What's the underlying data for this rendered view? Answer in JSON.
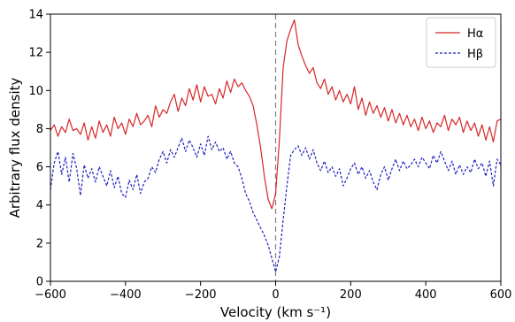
{
  "chart_data": {
    "type": "line",
    "xlabel": "Velocity (km s⁻¹)",
    "ylabel": "Arbitrary flux density",
    "xlim": [
      -600,
      600
    ],
    "ylim": [
      0,
      14
    ],
    "xticks": [
      -600,
      -400,
      -200,
      0,
      200,
      400,
      600
    ],
    "xtick_labels": [
      "−600",
      "−400",
      "−200",
      "0",
      "200",
      "400",
      "600"
    ],
    "yticks": [
      0,
      2,
      4,
      6,
      8,
      10,
      12,
      14
    ],
    "ytick_labels": [
      "0",
      "2",
      "4",
      "6",
      "8",
      "10",
      "12",
      "14"
    ],
    "grid": false,
    "legend_position": "top-right",
    "reference_line": {
      "x": 0,
      "style": "dashed",
      "color": "#808080"
    },
    "series": [
      {
        "name": "Hα",
        "color": "#d62728",
        "style": "solid",
        "x": [
          -600,
          -590,
          -580,
          -570,
          -560,
          -550,
          -540,
          -530,
          -520,
          -510,
          -500,
          -490,
          -480,
          -470,
          -460,
          -450,
          -440,
          -430,
          -420,
          -410,
          -400,
          -390,
          -380,
          -370,
          -360,
          -350,
          -340,
          -330,
          -320,
          -310,
          -300,
          -290,
          -280,
          -270,
          -260,
          -250,
          -240,
          -230,
          -220,
          -210,
          -200,
          -190,
          -180,
          -170,
          -160,
          -150,
          -140,
          -130,
          -120,
          -110,
          -100,
          -90,
          -80,
          -70,
          -60,
          -50,
          -40,
          -30,
          -20,
          -10,
          0,
          10,
          20,
          30,
          40,
          50,
          60,
          70,
          80,
          90,
          100,
          110,
          120,
          130,
          140,
          150,
          160,
          170,
          180,
          190,
          200,
          210,
          220,
          230,
          240,
          250,
          260,
          270,
          280,
          290,
          300,
          310,
          320,
          330,
          340,
          350,
          360,
          370,
          380,
          390,
          400,
          410,
          420,
          430,
          440,
          450,
          460,
          470,
          480,
          490,
          500,
          510,
          520,
          530,
          540,
          550,
          560,
          570,
          580,
          590,
          600
        ],
        "values": [
          7.9,
          8.2,
          7.6,
          8.1,
          7.8,
          8.5,
          7.9,
          8.0,
          7.7,
          8.3,
          7.4,
          8.1,
          7.5,
          8.4,
          7.8,
          8.2,
          7.6,
          8.6,
          8.0,
          8.3,
          7.7,
          8.5,
          8.1,
          8.8,
          8.2,
          8.4,
          8.7,
          8.1,
          9.2,
          8.6,
          9.0,
          8.8,
          9.4,
          9.8,
          8.9,
          9.6,
          9.2,
          10.1,
          9.5,
          10.3,
          9.4,
          10.2,
          9.7,
          9.8,
          9.3,
          10.1,
          9.6,
          10.5,
          9.9,
          10.6,
          10.2,
          10.4,
          10.0,
          9.7,
          9.2,
          8.2,
          7.0,
          5.5,
          4.3,
          3.8,
          4.6,
          7.4,
          11.2,
          12.6,
          13.2,
          13.7,
          12.4,
          11.8,
          11.3,
          10.9,
          11.2,
          10.4,
          10.1,
          10.6,
          9.8,
          10.2,
          9.5,
          10.0,
          9.4,
          9.8,
          9.3,
          10.2,
          9.0,
          9.6,
          8.7,
          9.4,
          8.8,
          9.2,
          8.6,
          9.1,
          8.4,
          9.0,
          8.3,
          8.8,
          8.2,
          8.7,
          8.1,
          8.5,
          7.9,
          8.6,
          8.0,
          8.4,
          7.8,
          8.3,
          8.1,
          8.7,
          7.9,
          8.5,
          8.2,
          8.6,
          7.8,
          8.4,
          7.9,
          8.3,
          7.6,
          8.2,
          7.4,
          8.1,
          7.3,
          8.4,
          8.5
        ]
      },
      {
        "name": "Hβ",
        "color": "#1f1fbf",
        "style": "dashed",
        "x": [
          -600,
          -590,
          -580,
          -570,
          -560,
          -550,
          -540,
          -530,
          -520,
          -510,
          -500,
          -490,
          -480,
          -470,
          -460,
          -450,
          -440,
          -430,
          -420,
          -410,
          -400,
          -390,
          -380,
          -370,
          -360,
          -350,
          -340,
          -330,
          -320,
          -310,
          -300,
          -290,
          -280,
          -270,
          -260,
          -250,
          -240,
          -230,
          -220,
          -210,
          -200,
          -190,
          -180,
          -170,
          -160,
          -150,
          -140,
          -130,
          -120,
          -110,
          -100,
          -90,
          -80,
          -70,
          -60,
          -50,
          -40,
          -30,
          -20,
          -10,
          0,
          10,
          20,
          30,
          40,
          50,
          60,
          70,
          80,
          90,
          100,
          110,
          120,
          130,
          140,
          150,
          160,
          170,
          180,
          190,
          200,
          210,
          220,
          230,
          240,
          250,
          260,
          270,
          280,
          290,
          300,
          310,
          320,
          330,
          340,
          350,
          360,
          370,
          380,
          390,
          400,
          410,
          420,
          430,
          440,
          450,
          460,
          470,
          480,
          490,
          500,
          510,
          520,
          530,
          540,
          550,
          560,
          570,
          580,
          590,
          600
        ],
        "values": [
          4.8,
          6.2,
          6.8,
          5.6,
          6.5,
          5.2,
          6.7,
          5.9,
          4.5,
          6.1,
          5.4,
          5.9,
          5.2,
          6.0,
          5.5,
          5.0,
          5.8,
          4.9,
          5.5,
          4.6,
          4.4,
          5.3,
          4.8,
          5.6,
          4.6,
          5.2,
          5.4,
          6.0,
          5.7,
          6.4,
          6.8,
          6.2,
          6.9,
          6.5,
          7.0,
          7.5,
          6.8,
          7.4,
          7.0,
          6.5,
          7.2,
          6.6,
          7.6,
          6.9,
          7.3,
          6.8,
          7.0,
          6.4,
          6.8,
          6.2,
          6.0,
          5.4,
          4.6,
          4.2,
          3.6,
          3.2,
          2.8,
          2.4,
          1.9,
          1.2,
          0.5,
          1.3,
          3.2,
          5.0,
          6.6,
          6.9,
          7.1,
          6.6,
          7.0,
          6.4,
          6.9,
          6.2,
          5.8,
          6.3,
          5.7,
          6.0,
          5.5,
          5.9,
          5.0,
          5.4,
          5.9,
          6.2,
          5.6,
          6.0,
          5.4,
          5.8,
          5.2,
          4.8,
          5.6,
          6.0,
          5.3,
          5.9,
          6.4,
          5.8,
          6.3,
          5.9,
          6.1,
          6.4,
          6.0,
          6.5,
          6.2,
          5.9,
          6.6,
          6.2,
          6.8,
          6.3,
          5.8,
          6.3,
          5.6,
          6.1,
          5.6,
          6.0,
          5.7,
          6.4,
          5.9,
          6.2,
          5.5,
          6.3,
          5.0,
          6.4,
          6.1
        ]
      }
    ]
  }
}
